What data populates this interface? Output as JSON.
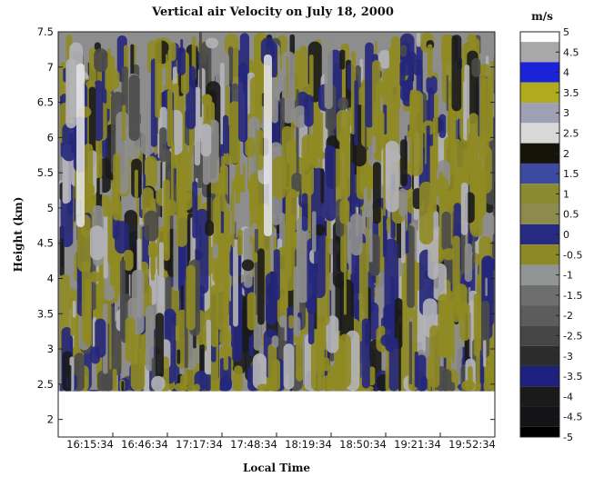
{
  "chart_data": {
    "type": "heatmap",
    "title": "Vertical air Velocity on July 18, 2000",
    "xlabel": "Local Time",
    "ylabel": "Height (km)",
    "x_ticks": [
      "16:15:34",
      "16:46:34",
      "17:17:34",
      "17:48:34",
      "18:19:34",
      "18:50:34",
      "19:21:34",
      "19:52:34"
    ],
    "y_ticks": [
      "2",
      "2.5",
      "3",
      "3.5",
      "4",
      "4.5",
      "5",
      "5.5",
      "6",
      "6.5",
      "7",
      "7.5"
    ],
    "ylim": [
      1.75,
      7.5
    ],
    "data_height_range_km": [
      2.4,
      7.5
    ],
    "colorbar": {
      "unit": "m/s",
      "ticks": [
        "5",
        "4.5",
        "4",
        "3.5",
        "3",
        "2.5",
        "2",
        "1.5",
        "1",
        "0.5",
        "0",
        "-0.5",
        "-1",
        "-1.5",
        "-2",
        "-2.5",
        "-3",
        "-3.5",
        "-4",
        "-4.5",
        "-5"
      ],
      "colors": [
        "#ffffff",
        "#a8a8a8",
        "#1c22d8",
        "#b0ab1c",
        "#a0a0b4",
        "#d8d8d8",
        "#141408",
        "#3c4aa0",
        "#8a8a30",
        "#8c8a4c",
        "#262a80",
        "#8c8824",
        "#909494",
        "#6e6e6e",
        "#5c5c5c",
        "#464646",
        "#2c2c2c",
        "#1e2080",
        "#1a1a1a",
        "#141418",
        "#000000"
      ]
    },
    "dominant_colors": {
      "olive": "#8f8a22",
      "navy": "#25277c",
      "gray": "#8d8d8d"
    }
  }
}
